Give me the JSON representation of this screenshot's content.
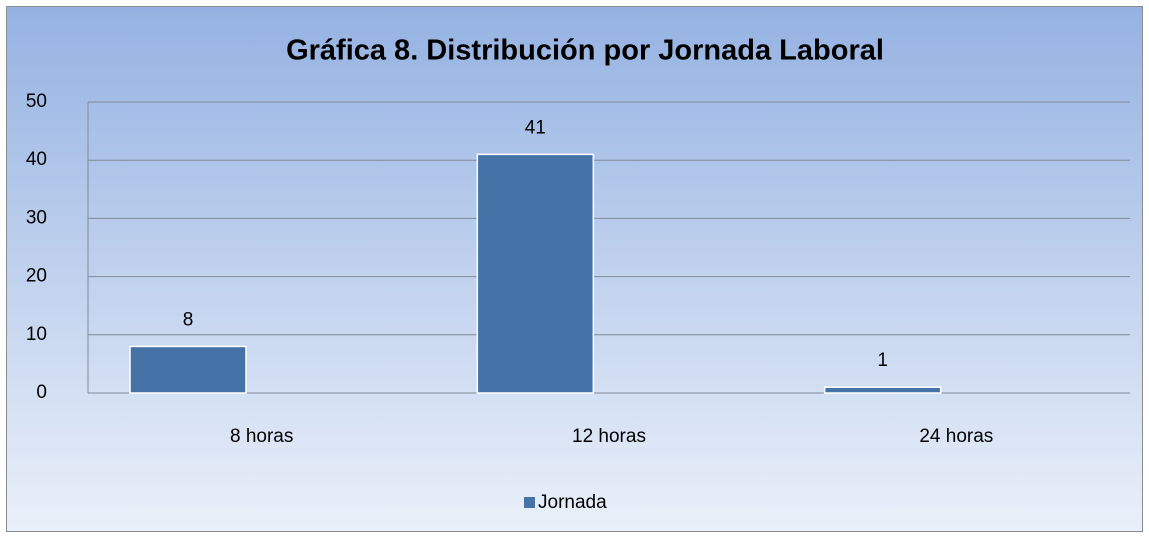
{
  "chart_data": {
    "type": "bar",
    "title": "Gráfica 8. Distribución por Jornada Laboral",
    "categories": [
      "8 horas",
      "12 horas",
      "24 horas"
    ],
    "series": [
      {
        "name": "Jornada",
        "color": "#4573a7",
        "values": [
          8,
          41,
          1
        ]
      }
    ],
    "ylim": [
      0,
      50
    ],
    "yticks": [
      0,
      10,
      20,
      30,
      40,
      50
    ],
    "grid": true,
    "legend": "bottom"
  }
}
